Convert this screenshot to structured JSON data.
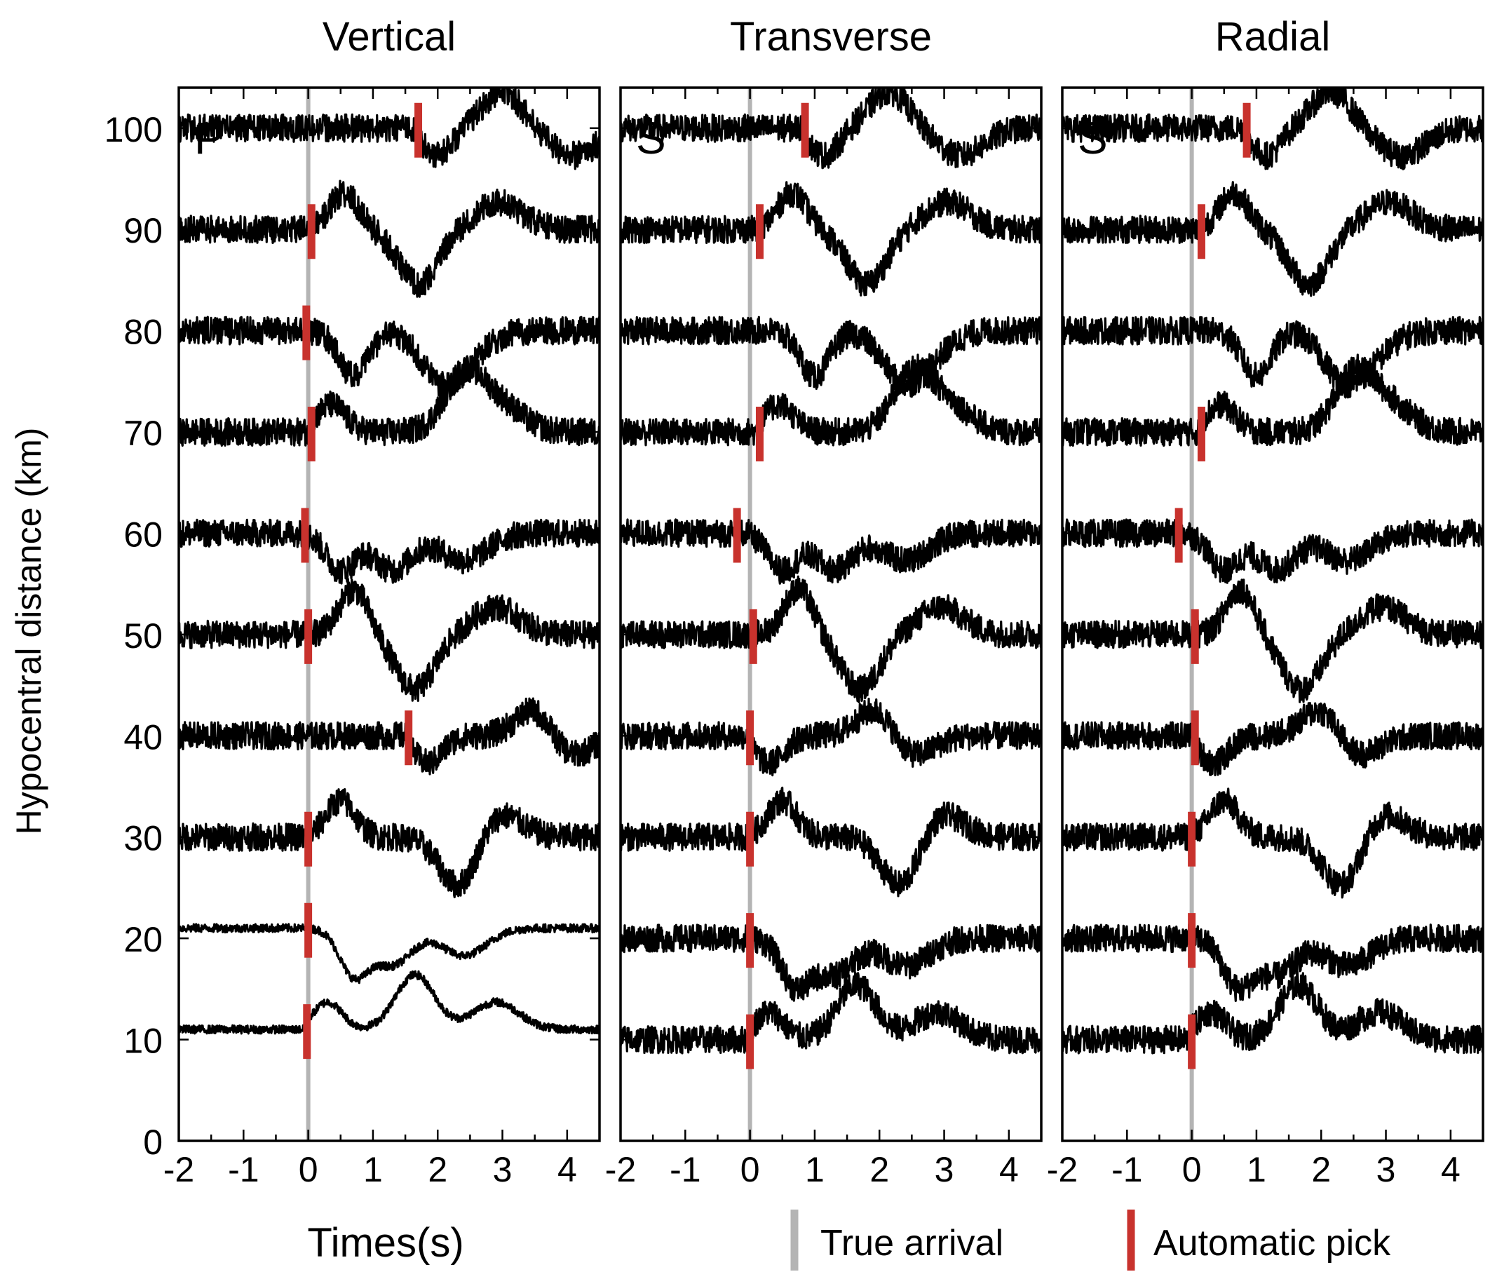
{
  "chart_data": {
    "type": "line",
    "ylabel": "Hypocentral distance (km)",
    "xlabel": "Times(s)",
    "yticks": [
      0,
      10,
      20,
      30,
      40,
      50,
      60,
      70,
      80,
      90,
      100
    ],
    "ylim": [
      0,
      104
    ],
    "xticks": [
      -2,
      -1,
      0,
      1,
      2,
      3,
      4
    ],
    "xlim": [
      -2,
      4.5
    ],
    "grid": false,
    "colors": {
      "trace": "#000000",
      "true_arrival": "#b4b4b4",
      "automatic_pick": "#c8322d"
    },
    "legend": {
      "placement": "bottom-right",
      "items": [
        {
          "label": "True arrival",
          "color": "#b4b4b4"
        },
        {
          "label": "Automatic pick",
          "color": "#c8322d"
        }
      ]
    },
    "distances": [
      100,
      90,
      80,
      70,
      60,
      50,
      40,
      30,
      20,
      10
    ],
    "true_arrival_time": 0,
    "panels": [
      {
        "title": "Vertical",
        "phase_label": "P",
        "picks": [
          {
            "distance": 100,
            "time": 1.7
          },
          {
            "distance": 90,
            "time": 0.05
          },
          {
            "distance": 80,
            "time": -0.03
          },
          {
            "distance": 70,
            "time": 0.05
          },
          {
            "distance": 60,
            "time": -0.05
          },
          {
            "distance": 50,
            "time": 0.0
          },
          {
            "distance": 40,
            "time": 1.55
          },
          {
            "distance": 30,
            "time": 0.0
          },
          {
            "distance": 20,
            "time": 0.0
          },
          {
            "distance": 10,
            "time": -0.02
          }
        ]
      },
      {
        "title": "Transverse",
        "phase_label": "S",
        "picks": [
          {
            "distance": 100,
            "time": 0.85
          },
          {
            "distance": 90,
            "time": 0.15
          },
          {
            "distance": 70,
            "time": 0.15
          },
          {
            "distance": 60,
            "time": -0.2
          },
          {
            "distance": 50,
            "time": 0.05
          },
          {
            "distance": 40,
            "time": 0.0
          },
          {
            "distance": 30,
            "time": 0.0
          },
          {
            "distance": 20,
            "time": 0.0
          },
          {
            "distance": 10,
            "time": 0.0
          }
        ]
      },
      {
        "title": "Radial",
        "phase_label": "S",
        "picks": [
          {
            "distance": 100,
            "time": 0.85
          },
          {
            "distance": 90,
            "time": 0.15
          },
          {
            "distance": 70,
            "time": 0.15
          },
          {
            "distance": 60,
            "time": -0.2
          },
          {
            "distance": 50,
            "time": 0.05
          },
          {
            "distance": 40,
            "time": 0.05
          },
          {
            "distance": 30,
            "time": 0.0
          },
          {
            "distance": 20,
            "time": 0.0
          },
          {
            "distance": 10,
            "time": 0.0
          }
        ]
      }
    ]
  }
}
